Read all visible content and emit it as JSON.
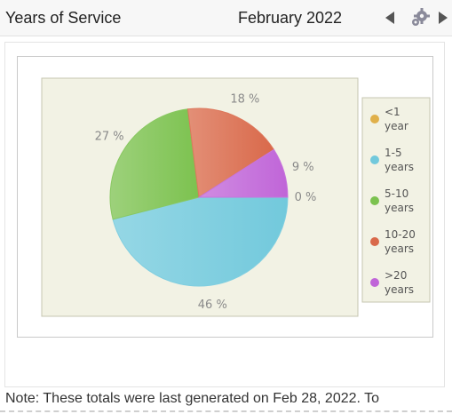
{
  "header": {
    "title": "Years of Service",
    "period": "February 2022"
  },
  "icons": {
    "prev": "triangle-left-icon",
    "settings": "gear-icon",
    "next": "triangle-right-icon"
  },
  "chart_data": {
    "type": "pie",
    "slices": [
      {
        "label": "<1 year",
        "legend_lines": [
          "<1",
          "year"
        ],
        "value": 0,
        "color": "#e0b04a"
      },
      {
        "label": "1-5 years",
        "legend_lines": [
          "1-5",
          "years"
        ],
        "value": 46,
        "color": "#72c9dc"
      },
      {
        "label": "5-10 years",
        "legend_lines": [
          "5-10",
          "years"
        ],
        "value": 27,
        "color": "#7cc24f"
      },
      {
        "label": "10-20 years",
        "legend_lines": [
          "10-20",
          "years"
        ],
        "value": 18,
        "color": "#d9694a"
      },
      {
        "label": ">20 years",
        "legend_lines": [
          ">20",
          "years"
        ],
        "value": 9,
        "color": "#c065d8"
      }
    ],
    "value_labels": [
      "0 %",
      "46 %",
      "27 %",
      "18 %",
      "9 %"
    ],
    "legend_position": "right",
    "plot_background": "#f2f2e4"
  },
  "footer": {
    "note": "Note: These totals were last generated on Feb 28, 2022. To"
  }
}
